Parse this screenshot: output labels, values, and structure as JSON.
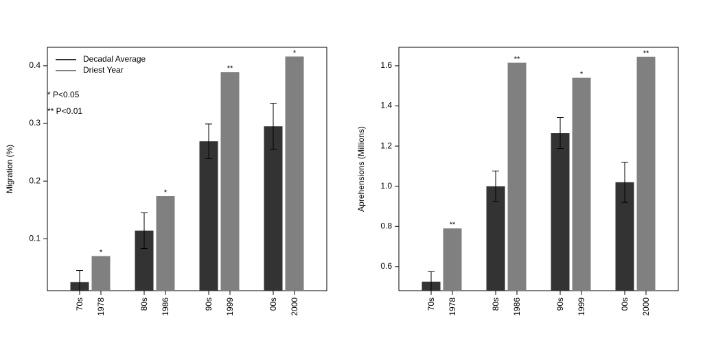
{
  "chart_data": [
    {
      "type": "bar",
      "ylabel": "Migration (%)",
      "ylim": [
        0.01,
        0.432
      ],
      "yticks": [
        0.1,
        0.2,
        0.3,
        0.4
      ],
      "series": [
        {
          "name": "Decadal Average",
          "color": "#333333",
          "categories": [
            "70s",
            "80s",
            "90s",
            "00s"
          ],
          "values": [
            0.025,
            0.114,
            0.269,
            0.295
          ],
          "errors": [
            0.02,
            0.031,
            0.03,
            0.04
          ]
        },
        {
          "name": "Driest Year",
          "color": "#808080",
          "categories": [
            "1978",
            "1986",
            "1999",
            "2000"
          ],
          "values": [
            0.07,
            0.174,
            0.389,
            0.416
          ],
          "annotations": [
            "*",
            "*",
            "**",
            "*"
          ]
        }
      ],
      "notes": [
        "* P<0.05",
        "** P<0.01"
      ],
      "legend": "top-left"
    },
    {
      "type": "bar",
      "ylabel": "Aprehensions (Millions)",
      "ylim": [
        0.48,
        1.692
      ],
      "yticks": [
        0.6,
        0.8,
        {
          "value": 1.0,
          "label": "1.0"
        },
        1.2,
        1.4,
        1.6
      ],
      "series": [
        {
          "color": "#333333",
          "categories": [
            "70s",
            "80s",
            "90s",
            "00s"
          ],
          "values": [
            0.525,
            1.0,
            1.265,
            1.02
          ],
          "errors": [
            0.05,
            0.076,
            0.077,
            0.1
          ]
        },
        {
          "color": "#808080",
          "categories": [
            "1978",
            "1986",
            "1999",
            "2000"
          ],
          "values": [
            0.79,
            1.615,
            1.54,
            1.645
          ],
          "annotations": [
            "**",
            "**",
            "*",
            "**"
          ]
        }
      ]
    }
  ]
}
